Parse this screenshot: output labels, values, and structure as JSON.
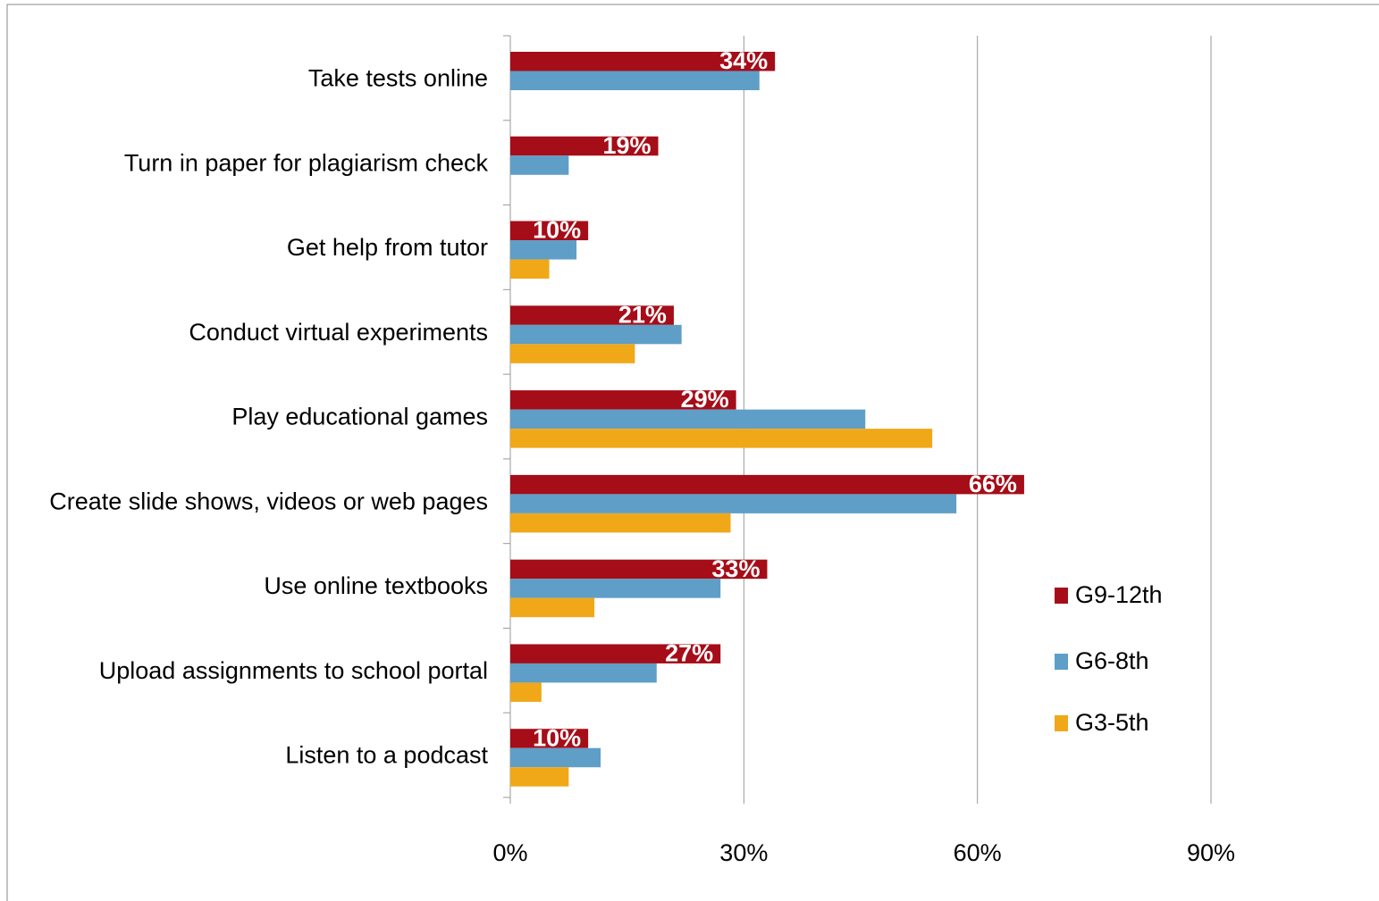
{
  "chart_data": {
    "type": "bar",
    "orientation": "horizontal",
    "categories": [
      "Take tests online",
      "Turn in paper for plagiarism check",
      "Get help from tutor",
      "Conduct virtual experiments",
      "Play educational games",
      "Create slide shows, videos or web pages",
      "Use online textbooks",
      "Upload assignments to school portal",
      "Listen to a podcast"
    ],
    "series": [
      {
        "name": "G9-12th",
        "color": "#a50d18",
        "values": [
          34,
          19,
          10,
          21,
          29,
          66,
          33,
          27,
          10
        ],
        "value_labels": [
          "34%",
          "19%",
          "10%",
          "21%",
          "29%",
          "66%",
          "33%",
          "27%",
          "10%"
        ]
      },
      {
        "name": "G6-8th",
        "color": "#5f9ec7",
        "values": [
          32,
          7.5,
          8.5,
          22,
          45.6,
          57.3,
          27,
          18.8,
          11.6
        ]
      },
      {
        "name": "G3-5th",
        "color": "#f0a818",
        "values": [
          null,
          null,
          5,
          16,
          54.2,
          28.3,
          10.8,
          4,
          7.5
        ]
      }
    ],
    "xlim": [
      0,
      90
    ],
    "xticks": [
      {
        "value": 0,
        "label": "0%"
      },
      {
        "value": 30,
        "label": "30%"
      },
      {
        "value": 60,
        "label": "60%"
      },
      {
        "value": 90,
        "label": "90%"
      }
    ],
    "grid": true,
    "legend": "right"
  }
}
